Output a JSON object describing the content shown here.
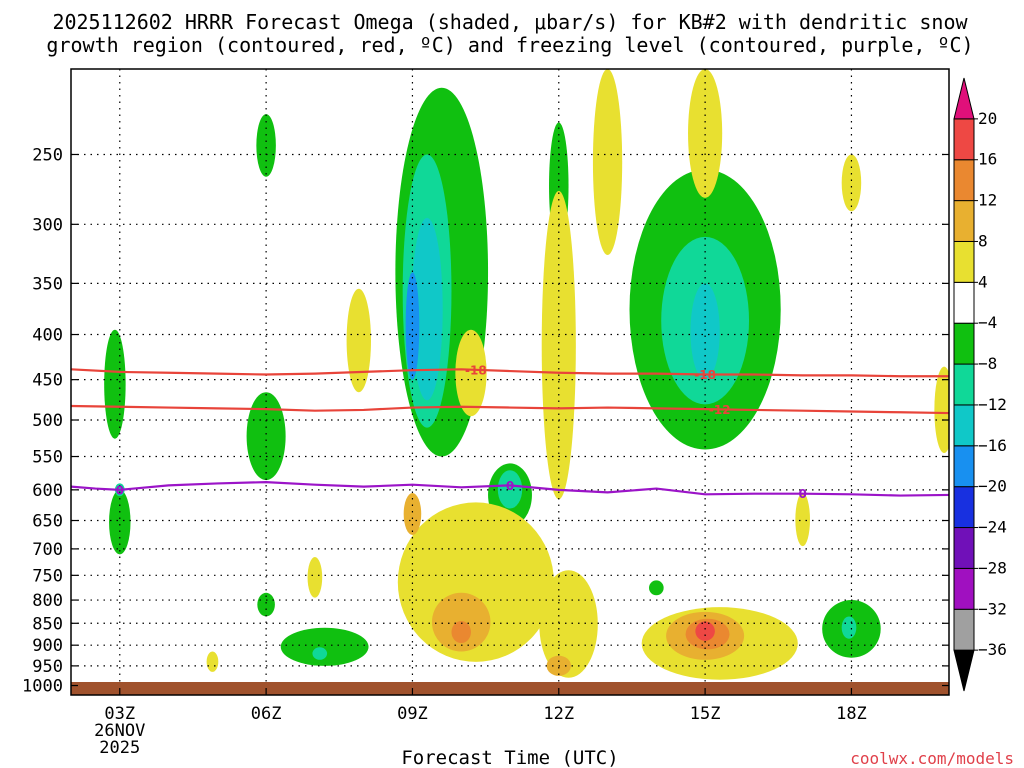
{
  "title_line1": "2025112602 HRRR Forecast Omega (shaded, μbar/s) for KB#2 with dendritic snow",
  "title_line2": "growth region (contoured, red, ºC) and freezing level (contoured, purple, ºC)",
  "credit": "coolwx.com/models",
  "colors": {
    "frame": "#000000",
    "grid": "#000000",
    "ground": "#a0522d",
    "contour_dgz": "#e8443a",
    "contour_freezing": "#9b14c8"
  },
  "chart_data": {
    "type": "heatmap",
    "xlabel": "Forecast Time (UTC)",
    "ylabel": "",
    "x_hours_range": [
      2.0,
      20.0
    ],
    "y_pressure_range": [
      1025,
      200
    ],
    "x_ticks": [
      {
        "hour": 3,
        "label": "03Z",
        "sub1": "26NOV",
        "sub2": "2025"
      },
      {
        "hour": 6,
        "label": "06Z",
        "sub1": "",
        "sub2": ""
      },
      {
        "hour": 9,
        "label": "09Z",
        "sub1": "",
        "sub2": ""
      },
      {
        "hour": 12,
        "label": "12Z",
        "sub1": "",
        "sub2": ""
      },
      {
        "hour": 15,
        "label": "15Z",
        "sub1": "",
        "sub2": ""
      },
      {
        "hour": 18,
        "label": "18Z",
        "sub1": "",
        "sub2": ""
      }
    ],
    "y_ticks": [
      250,
      300,
      350,
      400,
      450,
      500,
      550,
      600,
      650,
      700,
      750,
      800,
      850,
      900,
      950,
      1000
    ],
    "y_tick_labels": [
      "250",
      "300",
      "350",
      "400",
      "450",
      "500",
      "550",
      "600",
      "650",
      "700",
      "750",
      "800",
      "850",
      "900",
      "950",
      "1000"
    ],
    "colorbar": {
      "units": "μbar/s",
      "levels": [
        -36,
        -32,
        -28,
        -24,
        -20,
        -16,
        -12,
        -8,
        -4,
        4,
        8,
        12,
        16,
        20
      ],
      "labels": [
        "20",
        "16",
        "12",
        "8",
        "4",
        "−4",
        "−8",
        "−12",
        "−16",
        "−20",
        "−24",
        "−28",
        "−32",
        "−36"
      ],
      "colors": [
        "#000000",
        "#a0a0a0",
        "#a010c0",
        "#7010b8",
        "#1830e0",
        "#1890f0",
        "#10c8c8",
        "#10d898",
        "#10c010",
        "#ffffff",
        "#e8e030",
        "#e8b030",
        "#ea8830",
        "#ee4844",
        "#e0107a"
      ]
    },
    "shaded_regions": [
      {
        "class": "-4",
        "color": "#10c010",
        "center_hour": 9.6,
        "center_p": 380,
        "hour_radius": 0.95,
        "p_radius": 170
      },
      {
        "class": "-4",
        "color": "#10c010",
        "center_hour": 15.0,
        "center_p": 400,
        "hour_radius": 1.55,
        "p_radius": 140
      },
      {
        "class": "-4",
        "color": "#10c010",
        "center_hour": 7.2,
        "center_p": 905,
        "hour_radius": 0.9,
        "p_radius": 45
      },
      {
        "class": "-4",
        "color": "#10c010",
        "center_hour": 18.0,
        "center_p": 865,
        "hour_radius": 0.6,
        "p_radius": 65
      },
      {
        "class": "-4",
        "color": "#10c010",
        "center_hour": 11.0,
        "center_p": 610,
        "hour_radius": 0.45,
        "p_radius": 50
      },
      {
        "class": "-4",
        "color": "#10c010",
        "center_hour": 2.9,
        "center_p": 460,
        "hour_radius": 0.22,
        "p_radius": 65
      },
      {
        "class": "-4",
        "color": "#10c010",
        "center_hour": 3.0,
        "center_p": 655,
        "hour_radius": 0.22,
        "p_radius": 55
      },
      {
        "class": "-4",
        "color": "#10c010",
        "center_hour": 6.0,
        "center_p": 525,
        "hour_radius": 0.4,
        "p_radius": 60
      },
      {
        "class": "-4",
        "color": "#10c010",
        "center_hour": 6.0,
        "center_p": 245,
        "hour_radius": 0.2,
        "p_radius": 20
      },
      {
        "class": "-4",
        "color": "#10c010",
        "center_hour": 12.0,
        "center_p": 275,
        "hour_radius": 0.2,
        "p_radius": 45
      },
      {
        "class": "-4",
        "color": "#10c010",
        "center_hour": 6.0,
        "center_p": 810,
        "hour_radius": 0.18,
        "p_radius": 25
      },
      {
        "class": "-4",
        "color": "#10c010",
        "center_hour": 14.0,
        "center_p": 775,
        "hour_radius": 0.15,
        "p_radius": 15
      },
      {
        "class": "-8",
        "color": "#10d898",
        "center_hour": 9.3,
        "center_p": 380,
        "hour_radius": 0.5,
        "p_radius": 130
      },
      {
        "class": "-8",
        "color": "#10d898",
        "center_hour": 15.0,
        "center_p": 395,
        "hour_radius": 0.9,
        "p_radius": 85
      },
      {
        "class": "-8",
        "color": "#10d898",
        "center_hour": 11.0,
        "center_p": 600,
        "hour_radius": 0.25,
        "p_radius": 30
      },
      {
        "class": "-8",
        "color": "#10d898",
        "center_hour": 7.1,
        "center_p": 920,
        "hour_radius": 0.15,
        "p_radius": 15
      },
      {
        "class": "-8",
        "color": "#10d898",
        "center_hour": 17.95,
        "center_p": 860,
        "hour_radius": 0.15,
        "p_radius": 25
      },
      {
        "class": "-8",
        "color": "#10d898",
        "center_hour": 3.0,
        "center_p": 600,
        "hour_radius": 0.1,
        "p_radius": 10
      },
      {
        "class": "-12",
        "color": "#10c8c8",
        "center_hour": 9.3,
        "center_p": 385,
        "hour_radius": 0.32,
        "p_radius": 90
      },
      {
        "class": "-12",
        "color": "#10c8c8",
        "center_hour": 15.0,
        "center_p": 400,
        "hour_radius": 0.3,
        "p_radius": 50
      },
      {
        "class": "-16",
        "color": "#1890f0",
        "center_hour": 9.0,
        "center_p": 395,
        "hour_radius": 0.14,
        "p_radius": 55
      },
      {
        "class": "4",
        "color": "#e8e030",
        "center_hour": 10.3,
        "center_p": 780,
        "hour_radius": 1.6,
        "p_radius": 160
      },
      {
        "class": "4",
        "color": "#e8e030",
        "center_hour": 15.3,
        "center_p": 900,
        "hour_radius": 1.6,
        "p_radius": 85
      },
      {
        "class": "4",
        "color": "#e8e030",
        "center_hour": 12.2,
        "center_p": 860,
        "hour_radius": 0.6,
        "p_radius": 120
      },
      {
        "class": "4",
        "color": "#e8e030",
        "center_hour": 12.0,
        "center_p": 445,
        "hour_radius": 0.35,
        "p_radius": 170
      },
      {
        "class": "4",
        "color": "#e8e030",
        "center_hour": 13.0,
        "center_p": 250,
        "hour_radius": 0.3,
        "p_radius": 75
      },
      {
        "class": "4",
        "color": "#e8e030",
        "center_hour": 15.0,
        "center_p": 225,
        "hour_radius": 0.35,
        "p_radius": 55
      },
      {
        "class": "4",
        "color": "#e8e030",
        "center_hour": 7.9,
        "center_p": 410,
        "hour_radius": 0.25,
        "p_radius": 55
      },
      {
        "class": "4",
        "color": "#e8e030",
        "center_hour": 10.2,
        "center_p": 445,
        "hour_radius": 0.32,
        "p_radius": 50
      },
      {
        "class": "4",
        "color": "#e8e030",
        "center_hour": 7.0,
        "center_p": 755,
        "hour_radius": 0.15,
        "p_radius": 40
      },
      {
        "class": "4",
        "color": "#e8e030",
        "center_hour": 17.0,
        "center_p": 650,
        "hour_radius": 0.15,
        "p_radius": 45
      },
      {
        "class": "4",
        "color": "#e8e030",
        "center_hour": 18.0,
        "center_p": 270,
        "hour_radius": 0.2,
        "p_radius": 20
      },
      {
        "class": "4",
        "color": "#e8e030",
        "center_hour": 4.9,
        "center_p": 940,
        "hour_radius": 0.12,
        "p_radius": 25
      },
      {
        "class": "4",
        "color": "#e8e030",
        "center_hour": 19.9,
        "center_p": 490,
        "hour_radius": 0.2,
        "p_radius": 55
      },
      {
        "class": "8",
        "color": "#e8b030",
        "center_hour": 10.0,
        "center_p": 850,
        "hour_radius": 0.6,
        "p_radius": 65
      },
      {
        "class": "8",
        "color": "#e8b030",
        "center_hour": 15.0,
        "center_p": 880,
        "hour_radius": 0.8,
        "p_radius": 55
      },
      {
        "class": "8",
        "color": "#e8b030",
        "center_hour": 9.0,
        "center_p": 640,
        "hour_radius": 0.18,
        "p_radius": 35
      },
      {
        "class": "8",
        "color": "#e8b030",
        "center_hour": 12.0,
        "center_p": 950,
        "hour_radius": 0.25,
        "p_radius": 25
      },
      {
        "class": "12",
        "color": "#ea8830",
        "center_hour": 15.05,
        "center_p": 875,
        "hour_radius": 0.45,
        "p_radius": 35
      },
      {
        "class": "12",
        "color": "#ea8830",
        "center_hour": 10.0,
        "center_p": 870,
        "hour_radius": 0.2,
        "p_radius": 25
      },
      {
        "class": "16",
        "color": "#ee4844",
        "center_hour": 15.0,
        "center_p": 868,
        "hour_radius": 0.2,
        "p_radius": 22
      }
    ],
    "series": [
      {
        "name": "-18",
        "kind": "dendritic snow growth region (red)",
        "hours": [
          2.0,
          3.0,
          4.0,
          5.0,
          6.0,
          7.0,
          8.0,
          9.0,
          10.0,
          11.0,
          12.0,
          13.0,
          14.0,
          15.0,
          16.0,
          17.0,
          18.0,
          19.0,
          20.0
        ],
        "pressure": [
          438,
          441,
          442,
          443,
          444,
          443,
          441,
          439,
          438,
          440,
          442,
          443,
          443,
          444,
          444,
          445,
          445,
          446,
          446
        ],
        "labels": [
          {
            "hour": 10.3,
            "text": "-18"
          },
          {
            "hour": 15.0,
            "text": "-18"
          }
        ]
      },
      {
        "name": "-12",
        "kind": "dendritic snow growth region (red)",
        "hours": [
          2.0,
          3.0,
          4.0,
          5.0,
          6.0,
          7.0,
          8.0,
          9.0,
          10.0,
          11.0,
          12.0,
          13.0,
          14.0,
          15.0,
          16.0,
          17.0,
          18.0,
          19.0,
          20.0
        ],
        "pressure": [
          482,
          483,
          484,
          485,
          486,
          488,
          487,
          484,
          483,
          484,
          485,
          484,
          485,
          486,
          487,
          488,
          489,
          490,
          491
        ],
        "labels": [
          {
            "hour": 15.3,
            "text": "-12"
          }
        ]
      },
      {
        "name": "0",
        "kind": "freezing level (purple)",
        "hours": [
          2.0,
          2.5,
          3.0,
          4.0,
          5.0,
          6.0,
          7.0,
          8.0,
          9.0,
          10.0,
          11.0,
          12.0,
          13.0,
          14.0,
          15.0,
          16.0,
          17.0,
          18.0,
          19.0,
          20.0
        ],
        "pressure": [
          595,
          598,
          600,
          593,
          590,
          588,
          592,
          595,
          592,
          596,
          593,
          600,
          604,
          598,
          607,
          606,
          606,
          607,
          609,
          608
        ],
        "labels": [
          {
            "hour": 3.0,
            "text": "0"
          },
          {
            "hour": 11.0,
            "text": "0"
          },
          {
            "hour": 17.0,
            "text": "0"
          }
        ]
      }
    ]
  }
}
